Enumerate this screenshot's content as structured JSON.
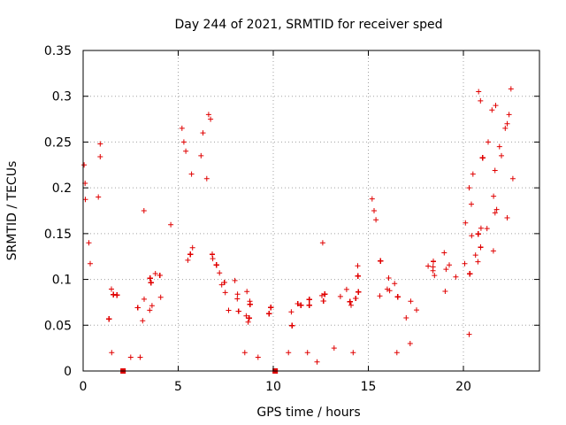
{
  "chart_data": {
    "type": "scatter",
    "title": "Day 244 of 2021, SRMTID for receiver sped",
    "xlabel": "GPS time / hours",
    "ylabel": "SRMTID / TECUs",
    "xlim": [
      0,
      24
    ],
    "ylim": [
      0,
      0.35
    ],
    "x_ticks": [
      0,
      5,
      10,
      15,
      20
    ],
    "x_tick_labels": [
      "0",
      "5",
      "10",
      "15",
      "20"
    ],
    "y_ticks": [
      0,
      0.05,
      0.1,
      0.15,
      0.2,
      0.25,
      0.3,
      0.35
    ],
    "y_tick_labels": [
      "0",
      "0.05",
      "0.1",
      "0.15",
      "0.2",
      "0.25",
      "0.3",
      "0.35"
    ],
    "grid": true,
    "marker": "plus",
    "color": "#e00000",
    "series": [
      {
        "name": "SRMTID",
        "trend": [
          {
            "x": 0.0,
            "y": 0.16,
            "s": 0.04
          },
          {
            "x": 0.5,
            "y": 0.13,
            "s": 0.035
          },
          {
            "x": 1.0,
            "y": 0.09,
            "s": 0.025
          },
          {
            "x": 2.0,
            "y": 0.065,
            "s": 0.02
          },
          {
            "x": 3.0,
            "y": 0.065,
            "s": 0.02
          },
          {
            "x": 4.0,
            "y": 0.085,
            "s": 0.025
          },
          {
            "x": 5.0,
            "y": 0.11,
            "s": 0.04
          },
          {
            "x": 5.8,
            "y": 0.14,
            "s": 0.05
          },
          {
            "x": 6.5,
            "y": 0.14,
            "s": 0.05
          },
          {
            "x": 7.0,
            "y": 0.1,
            "s": 0.03
          },
          {
            "x": 8.0,
            "y": 0.07,
            "s": 0.02
          },
          {
            "x": 9.5,
            "y": 0.05,
            "s": 0.018
          },
          {
            "x": 10.5,
            "y": 0.06,
            "s": 0.018
          },
          {
            "x": 12.0,
            "y": 0.065,
            "s": 0.018
          },
          {
            "x": 13.5,
            "y": 0.075,
            "s": 0.02
          },
          {
            "x": 15.0,
            "y": 0.09,
            "s": 0.025
          },
          {
            "x": 16.0,
            "y": 0.085,
            "s": 0.022
          },
          {
            "x": 17.0,
            "y": 0.075,
            "s": 0.022
          },
          {
            "x": 18.5,
            "y": 0.1,
            "s": 0.025
          },
          {
            "x": 19.5,
            "y": 0.12,
            "s": 0.03
          },
          {
            "x": 20.5,
            "y": 0.14,
            "s": 0.045
          },
          {
            "x": 21.5,
            "y": 0.17,
            "s": 0.05
          },
          {
            "x": 22.5,
            "y": 0.18,
            "s": 0.05
          }
        ],
        "points": [
          [
            0.05,
            0.225
          ],
          [
            0.1,
            0.205
          ],
          [
            0.3,
            0.14
          ],
          [
            0.9,
            0.248
          ],
          [
            0.9,
            0.234
          ],
          [
            0.8,
            0.19
          ],
          [
            1.5,
            0.02
          ],
          [
            2.5,
            0.015
          ],
          [
            3.2,
            0.175
          ],
          [
            3.0,
            0.015
          ],
          [
            5.2,
            0.265
          ],
          [
            5.3,
            0.25
          ],
          [
            5.4,
            0.24
          ],
          [
            6.3,
            0.26
          ],
          [
            6.6,
            0.28
          ],
          [
            6.7,
            0.275
          ],
          [
            5.7,
            0.215
          ],
          [
            6.2,
            0.235
          ],
          [
            6.5,
            0.21
          ],
          [
            8.5,
            0.02
          ],
          [
            9.2,
            0.015
          ],
          [
            10.8,
            0.02
          ],
          [
            11.8,
            0.02
          ],
          [
            12.3,
            0.01
          ],
          [
            13.2,
            0.025
          ],
          [
            12.6,
            0.14
          ],
          [
            15.2,
            0.188
          ],
          [
            15.3,
            0.175
          ],
          [
            15.4,
            0.165
          ],
          [
            14.2,
            0.02
          ],
          [
            16.5,
            0.02
          ],
          [
            17.2,
            0.03
          ],
          [
            20.3,
            0.04
          ],
          [
            20.8,
            0.305
          ],
          [
            20.9,
            0.295
          ],
          [
            21.5,
            0.285
          ],
          [
            22.5,
            0.308
          ],
          [
            22.4,
            0.28
          ],
          [
            22.3,
            0.27
          ],
          [
            21.3,
            0.25
          ],
          [
            21.9,
            0.245
          ],
          [
            22.0,
            0.235
          ],
          [
            22.2,
            0.265
          ],
          [
            21.7,
            0.29
          ],
          [
            20.3,
            0.2
          ],
          [
            20.5,
            0.215
          ],
          [
            22.6,
            0.21
          ]
        ],
        "n_samples": 2400
      }
    ],
    "zero_markers": [
      2.1,
      10.1
    ]
  }
}
